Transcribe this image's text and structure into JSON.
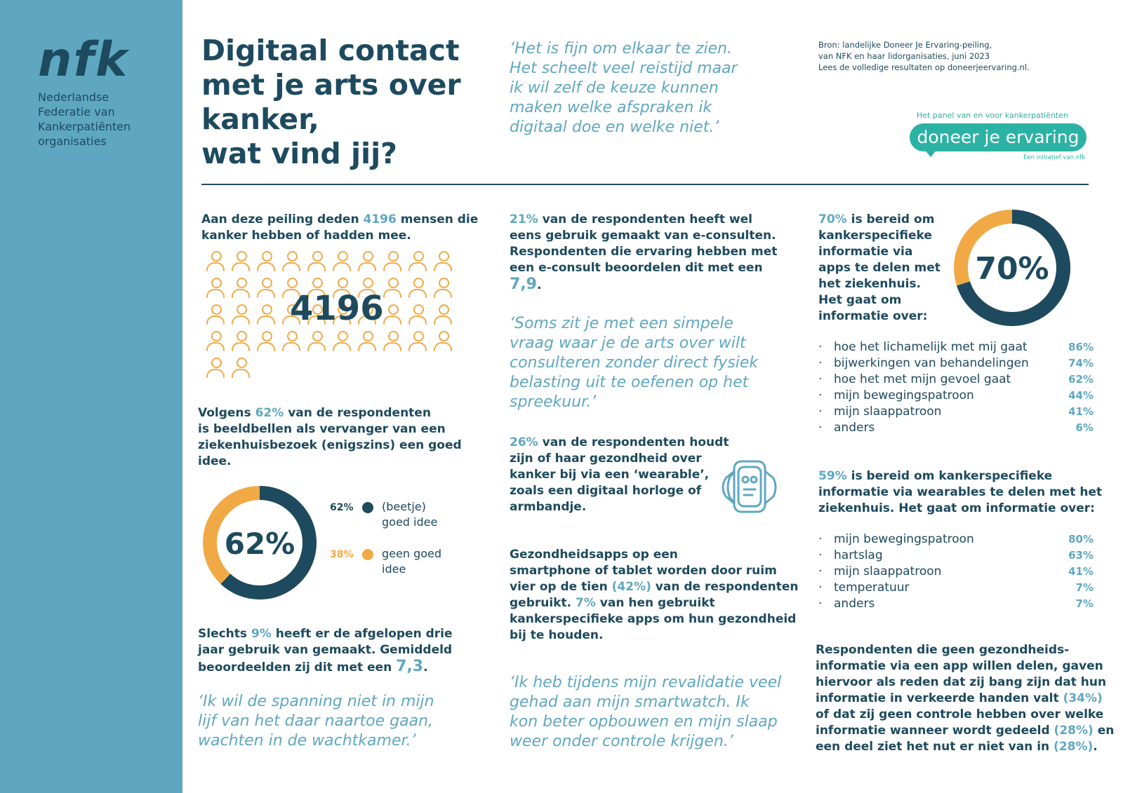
{
  "brand": {
    "logo": "nfk",
    "federation": [
      "Nederlandse",
      "Federatie van",
      "Kankerpatiënten",
      "organisaties"
    ]
  },
  "title": [
    "Digitaal contact",
    "met je arts over",
    "kanker,",
    "wat vind jij?"
  ],
  "quote_top": [
    "‘Het is fijn om elkaar te zien.",
    "Het scheelt veel reistijd maar",
    "ik wil zelf de keuze kunnen",
    "maken welke afspraken ik",
    "digitaal doe en welke niet.’"
  ],
  "source": [
    "Bron: landelijke Doneer Je Ervaring-peiling,",
    "van NFK en haar lidorganisaties, juni 2023",
    "Lees de volledige resultaten op doneerjeervaring.nl."
  ],
  "dje": {
    "tagline": "Het panel van en voor kankerpatiënten",
    "name": "doneer je ervaring",
    "footer": "Een initiatief van nfk"
  },
  "col1": {
    "intro_pre": "Aan deze peiling deden ",
    "intro_num": "4196",
    "intro_post": " mensen die",
    "intro_line2": "kanker hebben of hadden mee.",
    "people_count": "4196",
    "video_l1_pre": "Volgens ",
    "video_l1_num": "62%",
    "video_l1_post": " van de respondenten",
    "video_l2": "is beeldbellen als vervanger van een",
    "video_l3": "ziekenhuisbezoek (enigszins) een goed",
    "video_l4": "idee.",
    "donut_label": "62%",
    "legend": [
      {
        "pct": "62%",
        "label_l1": "(beetje)",
        "label_l2": "goed idee",
        "color": "#1d4a5e"
      },
      {
        "pct": "38%",
        "label_l1": "geen goed",
        "label_l2": "idee",
        "color": "#f0a945"
      }
    ],
    "slecht_l1_pre": "Slechts ",
    "slecht_l1_num": "9%",
    "slecht_l1_post": " heeft er de afgelopen drie",
    "slecht_l2": "jaar gebruik van gemaakt. Gemiddeld",
    "slecht_l3_pre": "beoordeelden zij dit met een ",
    "slecht_l3_num": "7,3",
    "slecht_l3_post": ".",
    "quote": [
      "‘Ik wil de spanning niet in mijn",
      "lijf van het daar naartoe gaan,",
      "wachten in de wachtkamer.’"
    ]
  },
  "col2": {
    "ec_l1_num": "21%",
    "ec_l1_post": " van de respondenten heeft wel",
    "ec_l2": "eens gebruik gemaakt van e-consulten.",
    "ec_l3": "Respondenten die ervaring hebben met",
    "ec_l4": "een e-consult beoordelen dit met een",
    "ec_score": "7,9",
    "ec_dot": ".",
    "quote1": [
      "‘Soms zit je met een simpele",
      "vraag waar je de arts over wilt",
      "consulteren zonder direct fysiek",
      "belasting uit te oefenen op het",
      "spreekuur.’"
    ],
    "wear_l1_num": "26%",
    "wear_l1_post": " van de respondenten houdt",
    "wear_l2": "zijn of haar gezondheid over",
    "wear_l3": "kanker bij via een ‘wearable’,",
    "wear_l4": "zoals een digitaal horloge of",
    "wear_l5": "armbandje.",
    "apps_l1": "Gezondheidsapps op een",
    "apps_l2": "smartphone of tablet worden door ruim",
    "apps_l3_pre": "vier op de tien ",
    "apps_l3_num": "(42%)",
    "apps_l3_post": " van de respondenten",
    "apps_l4_pre": "gebruikt. ",
    "apps_l4_num": "7%",
    "apps_l4_post": " van hen gebruikt",
    "apps_l5": "kankerspecifieke apps om hun gezondheid",
    "apps_l6": "bij te houden.",
    "quote2": [
      "‘Ik heb tijdens mijn revalidatie veel",
      "gehad aan mijn smartwatch. Ik",
      "kon beter opbouwen en mijn slaap",
      "weer onder controle krijgen.’"
    ]
  },
  "col3": {
    "apps_l1_num": "70%",
    "apps_l1_post": " is bereid om",
    "apps_rest": [
      "kankerspecifieke",
      "informatie via",
      "apps te delen met",
      "het ziekenhuis.",
      "Het gaat om",
      "informatie over:"
    ],
    "donut_label": "70%",
    "apps_list": [
      {
        "bullet": "·",
        "item": "hoe het lichamelijk met mij gaat",
        "value": "86%"
      },
      {
        "bullet": "·",
        "item": "bijwerkingen van behandelingen",
        "value": "74%"
      },
      {
        "bullet": "·",
        "item": "hoe het met mijn gevoel gaat",
        "value": "62%"
      },
      {
        "bullet": "·",
        "item": "mijn bewegingspatroon",
        "value": "44%"
      },
      {
        "bullet": "·",
        "item": "mijn slaappatroon",
        "value": "41%"
      },
      {
        "bullet": "·",
        "item": "anders",
        "value": "6%"
      }
    ],
    "wear_l1_num": "59%",
    "wear_l1_post": " is bereid om kankerspecifieke",
    "wear_l2": "informatie via wearables te delen met het",
    "wear_l3": "ziekenhuis. Het gaat om informatie over:",
    "wear_list": [
      {
        "bullet": "·",
        "item": "mijn bewegingspatroon",
        "value": "80%"
      },
      {
        "bullet": "·",
        "item": "hartslag",
        "value": "63%"
      },
      {
        "bullet": "·",
        "item": "mijn slaappatroon",
        "value": "41%"
      },
      {
        "bullet": "·",
        "item": "temperatuur",
        "value": "7%"
      },
      {
        "bullet": "·",
        "item": "anders",
        "value": "7%"
      }
    ],
    "resp_l1": "Respondenten die geen gezondheids-",
    "resp_l2": "informatie via een app willen delen, gaven",
    "resp_l3": "hiervoor als reden dat zij bang zijn dat hun",
    "resp_l4_pre": "informatie in verkeerde handen valt ",
    "resp_l4_num": "(34%)",
    "resp_l5": "of dat zij geen controle hebben over welke",
    "resp_l6_pre": "informatie wanneer wordt gedeeld ",
    "resp_l6_num": "(28%)",
    "resp_l6_post": " en",
    "resp_l7_pre": "een deel ziet het nut er niet van in ",
    "resp_l7_num": "(28%)",
    "resp_l7_post": "."
  }
}
